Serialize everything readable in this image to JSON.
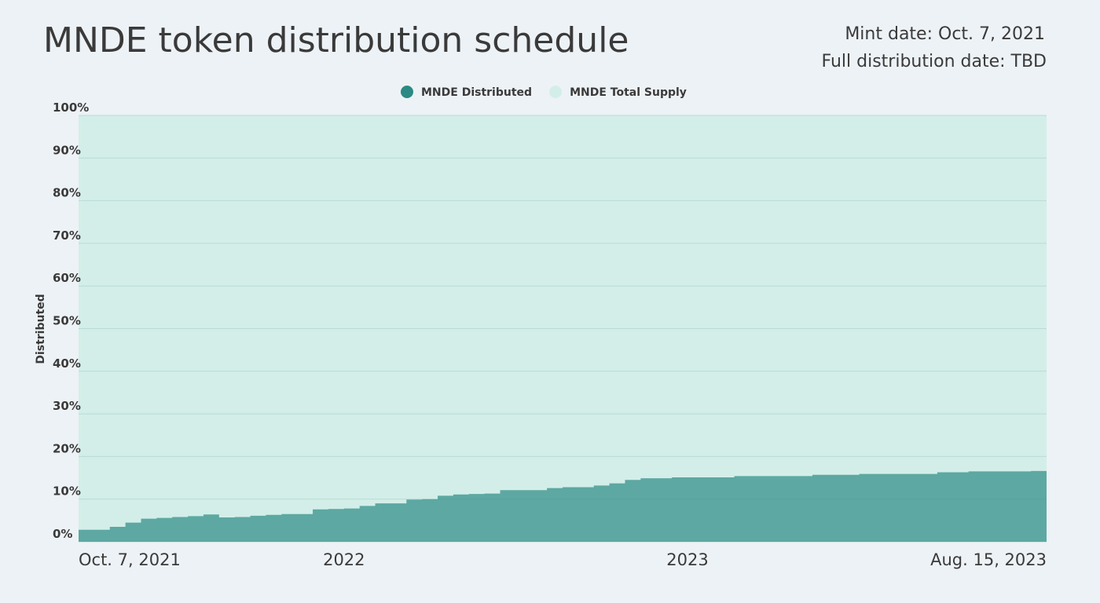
{
  "chart_data": {
    "type": "step-area",
    "title": "MNDE token distribution schedule",
    "annotations": [
      "Mint date: Oct. 7, 2021",
      "Full distribution date: TBD"
    ],
    "y_label": "Distributed",
    "categories": [
      "Oct. 7, 2021",
      null,
      null,
      null,
      null,
      null,
      null,
      null,
      null,
      null,
      null,
      null,
      null,
      null,
      null,
      null,
      null,
      "2022",
      null,
      null,
      null,
      null,
      null,
      null,
      null,
      null,
      null,
      null,
      null,
      null,
      null,
      null,
      null,
      null,
      null,
      null,
      null,
      null,
      null,
      "2023",
      null,
      null,
      null,
      null,
      null,
      null,
      null,
      null,
      null,
      null,
      null,
      null,
      null,
      null,
      null,
      null,
      null,
      null,
      null,
      null,
      null,
      null,
      "Aug. 15, 2023"
    ],
    "series": [
      {
        "name": "MNDE Distributed",
        "color": "#2b8a84",
        "values": [
          2.8,
          2.8,
          3.5,
          4.5,
          5.4,
          5.6,
          5.8,
          6.0,
          6.4,
          5.7,
          5.8,
          6.1,
          6.3,
          6.5,
          6.5,
          7.6,
          7.7,
          7.8,
          8.4,
          9.0,
          9.0,
          9.9,
          10.0,
          10.8,
          11.1,
          11.2,
          11.3,
          12.1,
          12.1,
          12.1,
          12.6,
          12.8,
          12.8,
          13.2,
          13.7,
          14.5,
          14.9,
          14.9,
          15.1,
          15.1,
          15.1,
          15.1,
          15.4,
          15.4,
          15.4,
          15.4,
          15.4,
          15.7,
          15.7,
          15.7,
          15.9,
          15.9,
          15.9,
          15.9,
          15.9,
          16.3,
          16.3,
          16.5,
          16.5,
          16.5,
          16.5,
          16.6,
          16.8
        ]
      },
      {
        "name": "MNDE Total Supply",
        "color": "#d3eee8",
        "values": [
          100,
          100,
          100,
          100,
          100,
          100,
          100,
          100,
          100,
          100,
          100,
          100,
          100,
          100,
          100,
          100,
          100,
          100,
          100,
          100,
          100,
          100,
          100,
          100,
          100,
          100,
          100,
          100,
          100,
          100,
          100,
          100,
          100,
          100,
          100,
          100,
          100,
          100,
          100,
          100,
          100,
          100,
          100,
          100,
          100,
          100,
          100,
          100,
          100,
          100,
          100,
          100,
          100,
          100,
          100,
          100,
          100,
          100,
          100,
          100,
          100,
          100,
          100
        ]
      }
    ],
    "ylim": [
      0,
      100
    ],
    "yticks": [
      {
        "value": 0,
        "label": "0%"
      },
      {
        "value": 10,
        "label": "10%"
      },
      {
        "value": 20,
        "label": "20%"
      },
      {
        "value": 30,
        "label": "30%"
      },
      {
        "value": 40,
        "label": "40%"
      },
      {
        "value": 50,
        "label": "50%"
      },
      {
        "value": 60,
        "label": "60%"
      },
      {
        "value": 70,
        "label": "70%"
      },
      {
        "value": 80,
        "label": "80%"
      },
      {
        "value": 90,
        "label": "90%"
      },
      {
        "value": 100,
        "label": "100%"
      }
    ],
    "grid": true,
    "legend": "top"
  }
}
